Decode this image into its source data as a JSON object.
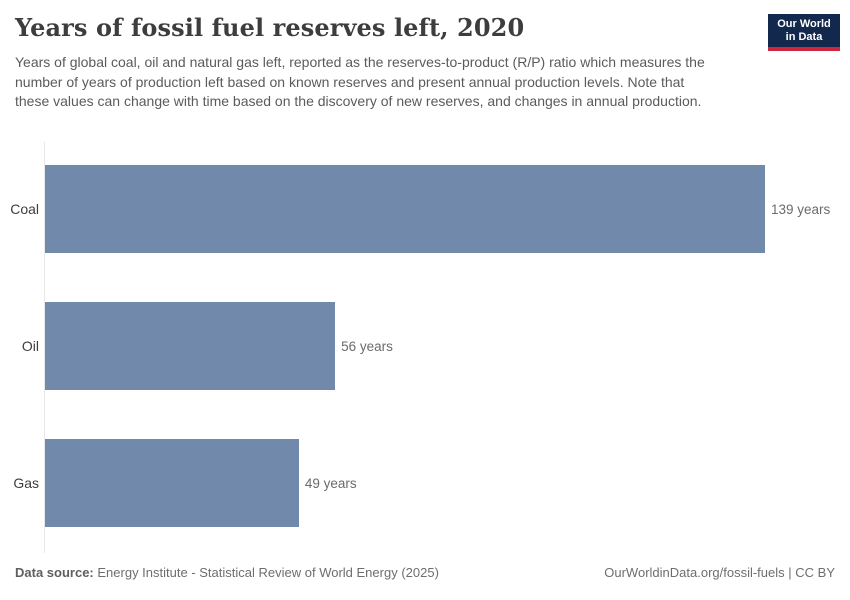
{
  "header": {
    "title": "Years of fossil fuel reserves left, 2020",
    "subtitle": "Years of global coal, oil and natural gas left, reported as the reserves-to-product (R/P) ratio which measures the number of years of production left based on known reserves and present annual production levels. Note that these values can change with time based on the discovery of new reserves, and changes in annual production.",
    "logo": {
      "line1": "Our World",
      "line2": "in Data",
      "bg_color": "#12294d",
      "stripe_color": "#cf2640"
    }
  },
  "chart_data": {
    "type": "bar",
    "orientation": "horizontal",
    "title": "Years of fossil fuel reserves left, 2020",
    "categories": [
      "Coal",
      "Oil",
      "Gas"
    ],
    "values": [
      139,
      56,
      49
    ],
    "value_labels": [
      "139 years",
      "56 years",
      "49 years"
    ],
    "unit": "years",
    "xlabel": "",
    "ylabel": "",
    "xlim": [
      0,
      139
    ],
    "grid": false,
    "legend": "none",
    "bar_color": "#7189ab",
    "axis_color": "#e8e8e8"
  },
  "footer": {
    "data_source_label": "Data source:",
    "data_source_text": "Energy Institute - Statistical Review of World Energy (2025)",
    "url": "OurWorldinData.org/fossil-fuels",
    "license_suffix": " | CC BY"
  }
}
